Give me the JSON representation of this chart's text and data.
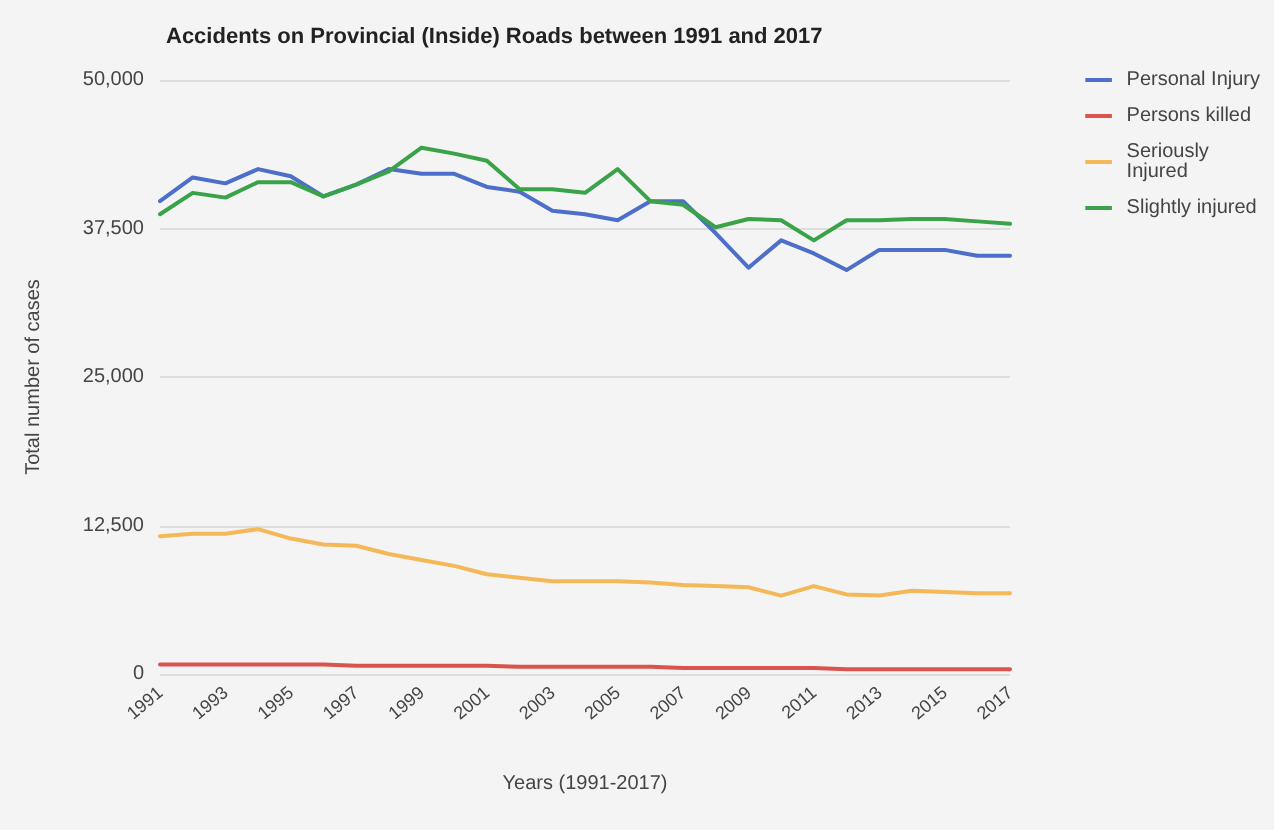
{
  "chart_data": {
    "type": "line",
    "title": "Accidents on Provincial (Inside) Roads between 1991 and 2017",
    "xlabel": "Years (1991-2017)",
    "ylabel": "Total number of cases",
    "x": [
      1991,
      1992,
      1993,
      1994,
      1995,
      1996,
      1997,
      1998,
      1999,
      2000,
      2001,
      2002,
      2003,
      2004,
      2005,
      2006,
      2007,
      2008,
      2009,
      2010,
      2011,
      2012,
      2013,
      2014,
      2015,
      2016,
      2017
    ],
    "series": [
      {
        "name": "Personal Injury",
        "color": "#4d6fc9",
        "values": [
          39800,
          41800,
          41300,
          42500,
          41900,
          40200,
          41200,
          42500,
          42100,
          42100,
          41000,
          40600,
          39000,
          38700,
          38200,
          39800,
          39800,
          37100,
          34200,
          36500,
          35400,
          34000,
          35700,
          35700,
          35700,
          35200,
          35200
        ]
      },
      {
        "name": "Persons killed",
        "color": "#d9534f",
        "values": [
          800,
          800,
          800,
          800,
          800,
          800,
          700,
          700,
          700,
          700,
          700,
          600,
          600,
          600,
          600,
          600,
          500,
          500,
          500,
          500,
          500,
          400,
          400,
          400,
          400,
          400,
          400
        ]
      },
      {
        "name": "Seriously Injured",
        "color": "#f4b858",
        "values": [
          11600,
          11800,
          11800,
          12200,
          11400,
          10900,
          10800,
          10100,
          9600,
          9100,
          8400,
          8100,
          7800,
          7800,
          7800,
          7700,
          7500,
          7400,
          7300,
          6600,
          7400,
          6700,
          6600,
          7000,
          6900,
          6800,
          6800
        ]
      },
      {
        "name": "Slightly injured",
        "color": "#3aa34a",
        "values": [
          38700,
          40500,
          40100,
          41400,
          41400,
          40200,
          41200,
          42300,
          44300,
          43800,
          43200,
          40800,
          40800,
          40500,
          42500,
          39800,
          39500,
          37600,
          38300,
          38200,
          36500,
          38200,
          38200,
          38300,
          38300,
          38100,
          37900
        ]
      }
    ],
    "xlim": [
      1991,
      2017
    ],
    "xticks": [
      1991,
      1993,
      1995,
      1997,
      1999,
      2001,
      2003,
      2005,
      2007,
      2009,
      2011,
      2013,
      2015,
      2017
    ],
    "ylim": [
      0,
      50000
    ],
    "yticks": [
      {
        "value": 0,
        "label": "0"
      },
      {
        "value": 12500,
        "label": "12,500"
      },
      {
        "value": 25000,
        "label": "25,000"
      },
      {
        "value": 37500,
        "label": "37,500"
      },
      {
        "value": 50000,
        "label": "50,000"
      }
    ],
    "grid": "y",
    "legend": "right",
    "marker": "none",
    "line_style": "solid"
  }
}
